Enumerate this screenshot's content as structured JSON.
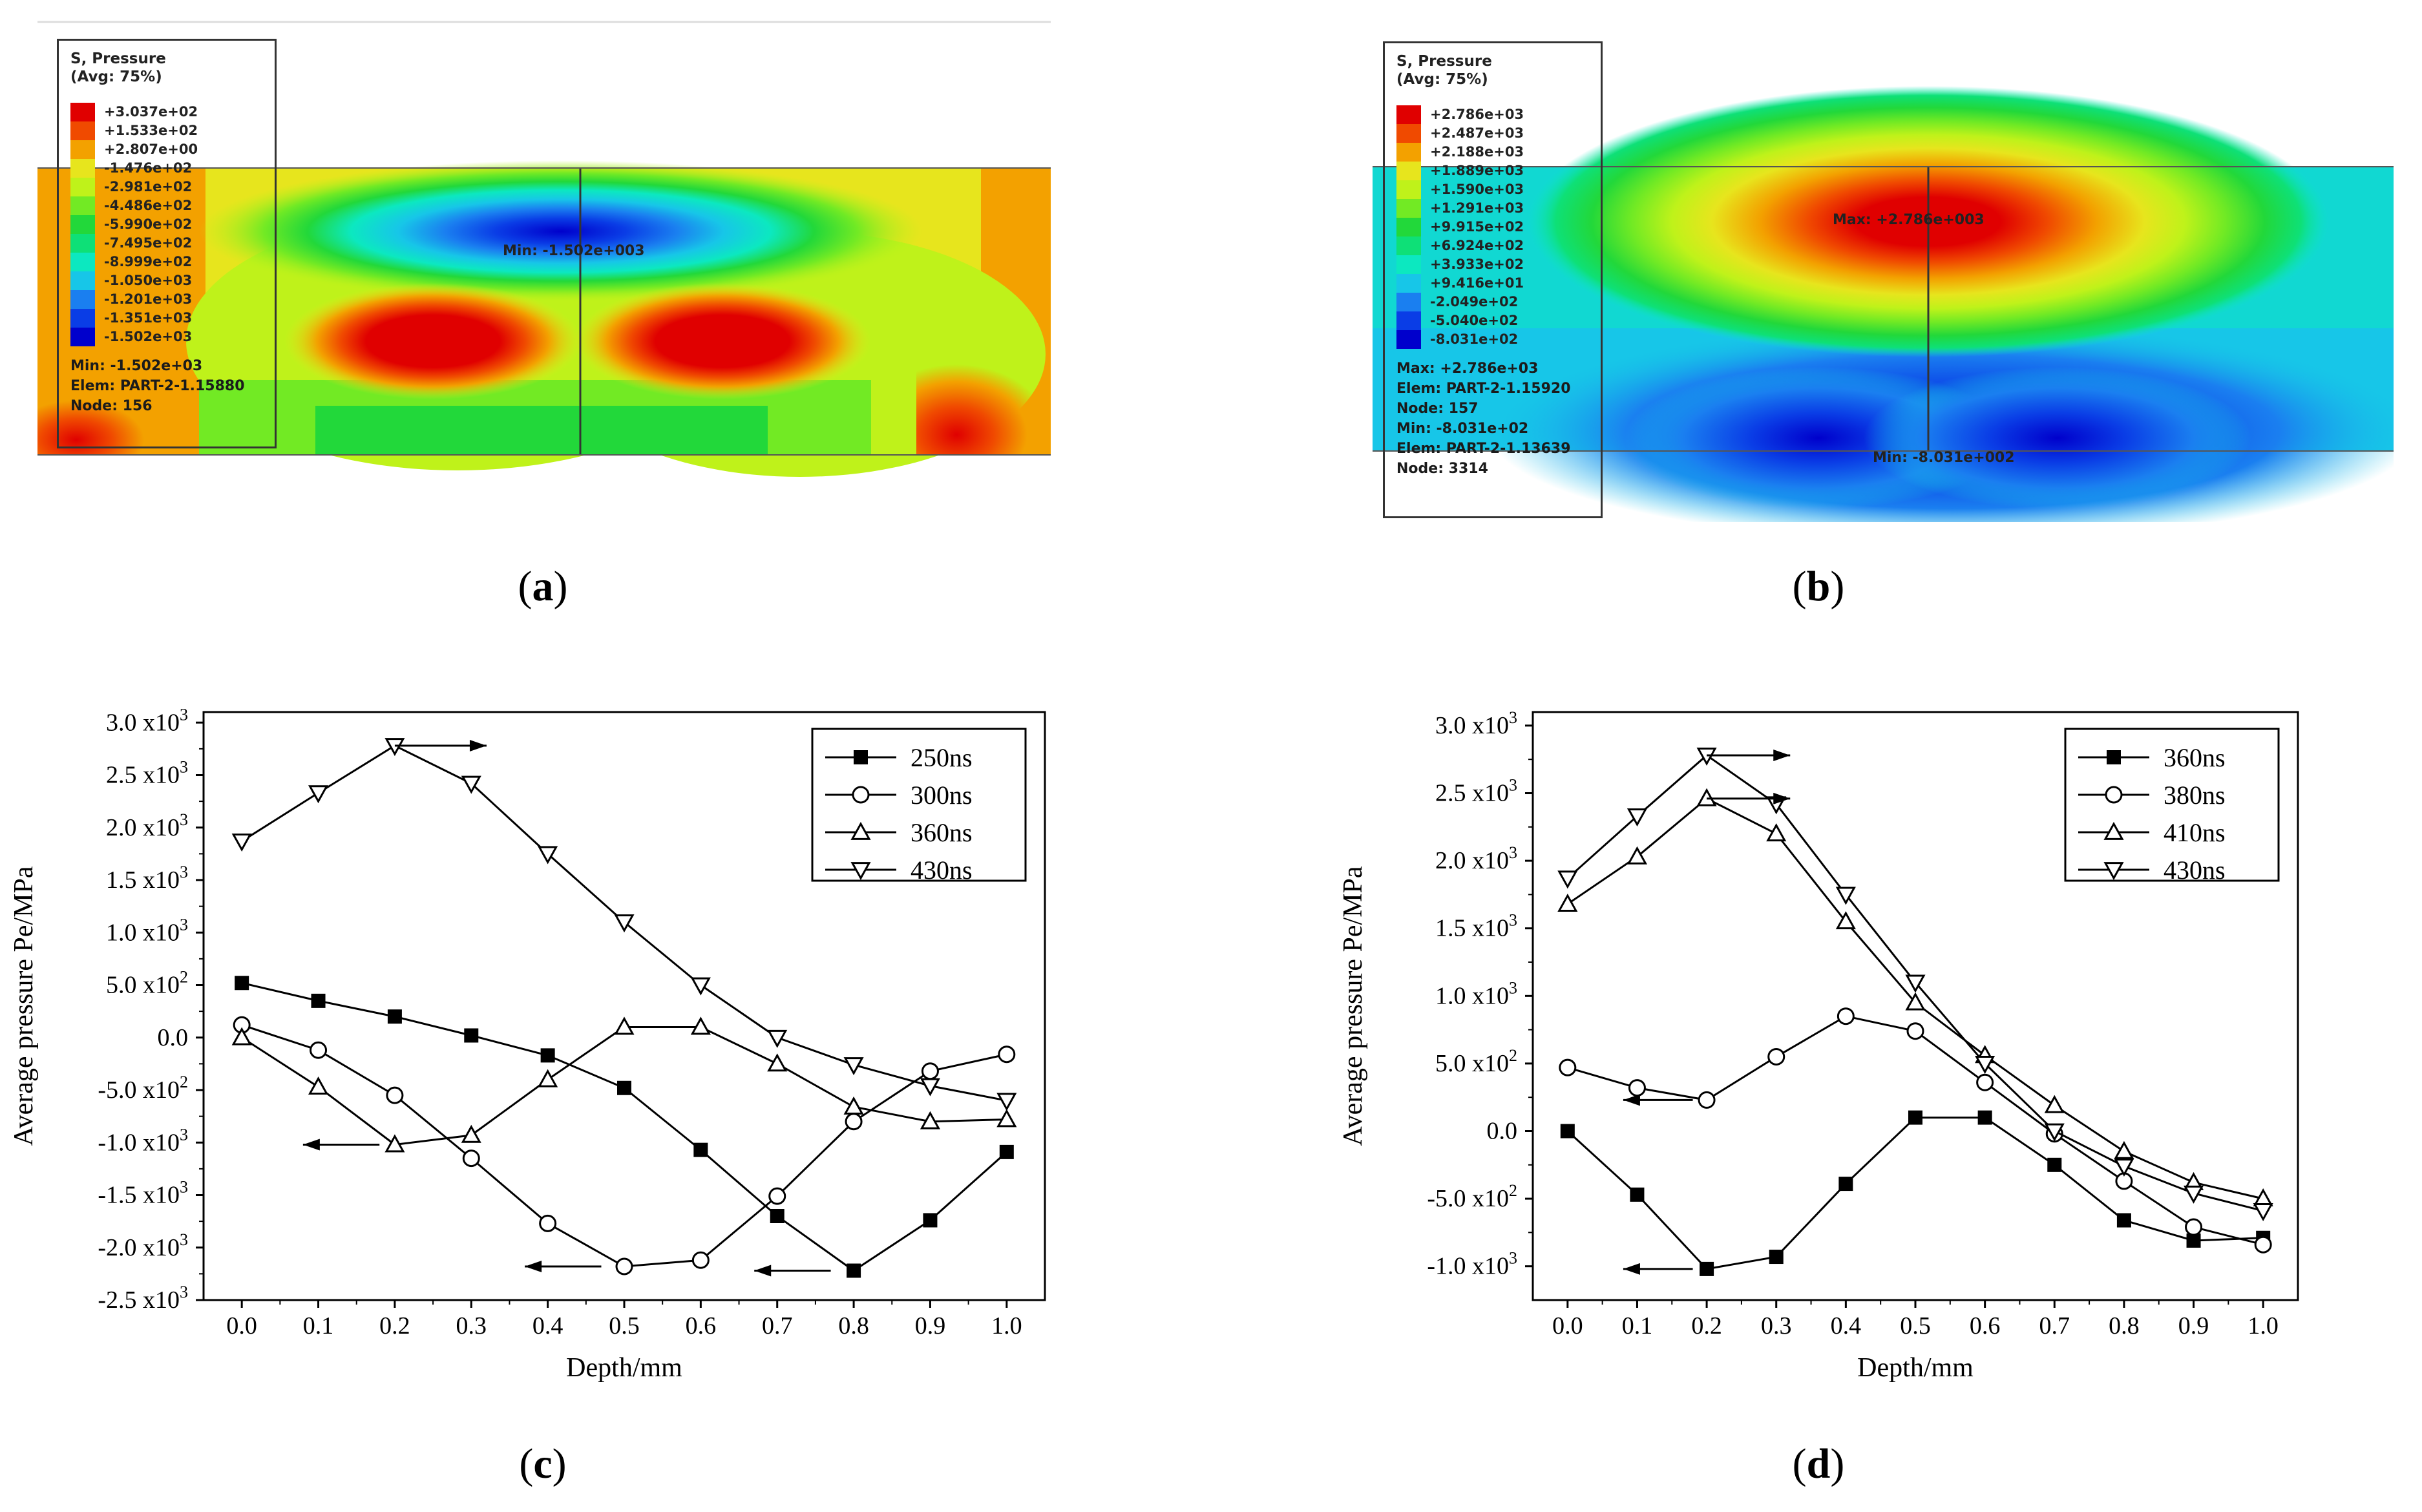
{
  "panels": {
    "a": {
      "caption": "a",
      "legend": {
        "title_line1": "S, Pressure",
        "title_line2": "(Avg: 75%)",
        "entries": [
          {
            "value": "+3.037e+02",
            "color": "#e00000"
          },
          {
            "value": "+1.533e+02",
            "color": "#f04a00"
          },
          {
            "value": "+2.807e+00",
            "color": "#f3a100"
          },
          {
            "value": "-1.476e+02",
            "color": "#e7e51d"
          },
          {
            "value": "-2.981e+02",
            "color": "#bff21a"
          },
          {
            "value": "-4.486e+02",
            "color": "#72ea24"
          },
          {
            "value": "-5.990e+02",
            "color": "#22d83a"
          },
          {
            "value": "-7.495e+02",
            "color": "#0ee077"
          },
          {
            "value": "-8.999e+02",
            "color": "#0ce8c0"
          },
          {
            "value": "-1.050e+03",
            "color": "#17c6e8"
          },
          {
            "value": "-1.201e+03",
            "color": "#1a7ff0"
          },
          {
            "value": "-1.351e+03",
            "color": "#0a3de6"
          },
          {
            "value": "-1.502e+03",
            "color": "#0000cc"
          }
        ],
        "info_lines": [
          "Min: -1.502e+03",
          "Elem: PART-2-1.15880",
          "Node: 156"
        ]
      },
      "min_label": "Min: -1.502e+003"
    },
    "b": {
      "caption": "b",
      "legend": {
        "title_line1": "S, Pressure",
        "title_line2": "(Avg: 75%)",
        "entries": [
          {
            "value": "+2.786e+03",
            "color": "#e00000"
          },
          {
            "value": "+2.487e+03",
            "color": "#f04a00"
          },
          {
            "value": "+2.188e+03",
            "color": "#f3a100"
          },
          {
            "value": "+1.889e+03",
            "color": "#e7e51d"
          },
          {
            "value": "+1.590e+03",
            "color": "#bff21a"
          },
          {
            "value": "+1.291e+03",
            "color": "#72ea24"
          },
          {
            "value": "+9.915e+02",
            "color": "#22d83a"
          },
          {
            "value": "+6.924e+02",
            "color": "#0ee077"
          },
          {
            "value": "+3.933e+02",
            "color": "#0ce8c0"
          },
          {
            "value": "+9.416e+01",
            "color": "#17c6e8"
          },
          {
            "value": "-2.049e+02",
            "color": "#1a7ff0"
          },
          {
            "value": "-5.040e+02",
            "color": "#0a3de6"
          },
          {
            "value": "-8.031e+02",
            "color": "#0000cc"
          }
        ],
        "info_lines": [
          "Max: +2.786e+03",
          "Elem: PART-2-1.15920",
          "Node: 157",
          "Min: -8.031e+02",
          "Elem: PART-2-1.13639",
          "Node: 3314"
        ]
      },
      "max_label": "Max: +2.786e+003",
      "min_label": "Min: -8.031e+002"
    },
    "c": {
      "caption": "c"
    },
    "d": {
      "caption": "d"
    }
  },
  "chart_data": [
    {
      "id": "c",
      "type": "line",
      "xlabel": "Depth/mm",
      "ylabel": "Average pressure Pe/MPa",
      "xlim": [
        -0.05,
        1.05
      ],
      "ylim": [
        -2500,
        3100
      ],
      "x_ticks": [
        "0.0",
        "0.1",
        "0.2",
        "0.3",
        "0.4",
        "0.5",
        "0.6",
        "0.7",
        "0.8",
        "0.9",
        "1.0"
      ],
      "y_ticks": [
        {
          "value": 3000,
          "mantissa": "3.0",
          "exp": "3"
        },
        {
          "value": 2500,
          "mantissa": "2.5",
          "exp": "3"
        },
        {
          "value": 2000,
          "mantissa": "2.0",
          "exp": "3"
        },
        {
          "value": 1500,
          "mantissa": "1.5",
          "exp": "3"
        },
        {
          "value": 1000,
          "mantissa": "1.0",
          "exp": "3"
        },
        {
          "value": 500,
          "mantissa": "5.0",
          "exp": "2"
        },
        {
          "value": 0,
          "mantissa": "0.0",
          "exp": ""
        },
        {
          "value": -500,
          "mantissa": "-5.0",
          "exp": "2"
        },
        {
          "value": -1000,
          "mantissa": "-1.0",
          "exp": "3"
        },
        {
          "value": -1500,
          "mantissa": "-1.5",
          "exp": "3"
        },
        {
          "value": -2000,
          "mantissa": "-2.0",
          "exp": "3"
        },
        {
          "value": -2500,
          "mantissa": "-2.5",
          "exp": "3"
        }
      ],
      "x": [
        0.0,
        0.1,
        0.2,
        0.3,
        0.4,
        0.5,
        0.6,
        0.7,
        0.8,
        0.9,
        1.0
      ],
      "series": [
        {
          "name": "250ns",
          "marker": "square",
          "values": [
            520,
            350,
            200,
            20,
            -170,
            -480,
            -1070,
            -1700,
            -2220,
            -1740,
            -1090
          ]
        },
        {
          "name": "300ns",
          "marker": "circle",
          "values": [
            120,
            -120,
            -550,
            -1150,
            -1770,
            -2180,
            -2120,
            -1510,
            -800,
            -320,
            -160
          ]
        },
        {
          "name": "360ns",
          "marker": "triangle-up",
          "values": [
            0,
            -470,
            -1020,
            -930,
            -400,
            100,
            100,
            -250,
            -660,
            -800,
            -780
          ]
        },
        {
          "name": "430ns",
          "marker": "triangle-down",
          "values": [
            1870,
            2330,
            2780,
            2420,
            1750,
            1100,
            500,
            0,
            -260,
            -460,
            -600
          ]
        }
      ],
      "arrows": [
        {
          "x1": 0.2,
          "y1": 2780,
          "x2": 0.32,
          "y2": 2780
        },
        {
          "x1": 0.18,
          "y1": -1020,
          "x2": 0.08,
          "y2": -1020
        },
        {
          "x1": 0.47,
          "y1": -2180,
          "x2": 0.37,
          "y2": -2180
        },
        {
          "x1": 0.77,
          "y1": -2220,
          "x2": 0.67,
          "y2": -2220
        }
      ],
      "legend_position": "top-right"
    },
    {
      "id": "d",
      "type": "line",
      "xlabel": "Depth/mm",
      "ylabel": "Average pressure Pe/MPa",
      "xlim": [
        -0.05,
        1.05
      ],
      "ylim": [
        -1250,
        3100
      ],
      "x_ticks": [
        "0.0",
        "0.1",
        "0.2",
        "0.3",
        "0.4",
        "0.5",
        "0.6",
        "0.7",
        "0.8",
        "0.9",
        "1.0"
      ],
      "y_ticks": [
        {
          "value": 3000,
          "mantissa": "3.0",
          "exp": "3"
        },
        {
          "value": 2500,
          "mantissa": "2.5",
          "exp": "3"
        },
        {
          "value": 2000,
          "mantissa": "2.0",
          "exp": "3"
        },
        {
          "value": 1500,
          "mantissa": "1.5",
          "exp": "3"
        },
        {
          "value": 1000,
          "mantissa": "1.0",
          "exp": "3"
        },
        {
          "value": 500,
          "mantissa": "5.0",
          "exp": "2"
        },
        {
          "value": 0,
          "mantissa": "0.0",
          "exp": ""
        },
        {
          "value": -500,
          "mantissa": "-5.0",
          "exp": "2"
        },
        {
          "value": -1000,
          "mantissa": "-1.0",
          "exp": "3"
        }
      ],
      "x": [
        0.0,
        0.1,
        0.2,
        0.3,
        0.4,
        0.5,
        0.6,
        0.7,
        0.8,
        0.9,
        1.0
      ],
      "series": [
        {
          "name": "360ns",
          "marker": "square",
          "values": [
            0,
            -470,
            -1020,
            -930,
            -390,
            100,
            100,
            -250,
            -660,
            -810,
            -790
          ]
        },
        {
          "name": "380ns",
          "marker": "circle",
          "values": [
            470,
            320,
            230,
            550,
            850,
            740,
            360,
            -20,
            -370,
            -710,
            -840
          ]
        },
        {
          "name": "410ns",
          "marker": "triangle-up",
          "values": [
            1680,
            2030,
            2460,
            2200,
            1550,
            950,
            560,
            190,
            -150,
            -380,
            -500
          ]
        },
        {
          "name": "430ns",
          "marker": "triangle-down",
          "values": [
            1870,
            2330,
            2780,
            2420,
            1750,
            1100,
            500,
            0,
            -260,
            -460,
            -590
          ]
        }
      ],
      "arrows": [
        {
          "x1": 0.2,
          "y1": 2780,
          "x2": 0.32,
          "y2": 2780
        },
        {
          "x1": 0.2,
          "y1": 2460,
          "x2": 0.32,
          "y2": 2460
        },
        {
          "x1": 0.18,
          "y1": 230,
          "x2": 0.08,
          "y2": 230
        },
        {
          "x1": 0.18,
          "y1": -1020,
          "x2": 0.08,
          "y2": -1020
        }
      ],
      "legend_position": "top-right"
    }
  ]
}
